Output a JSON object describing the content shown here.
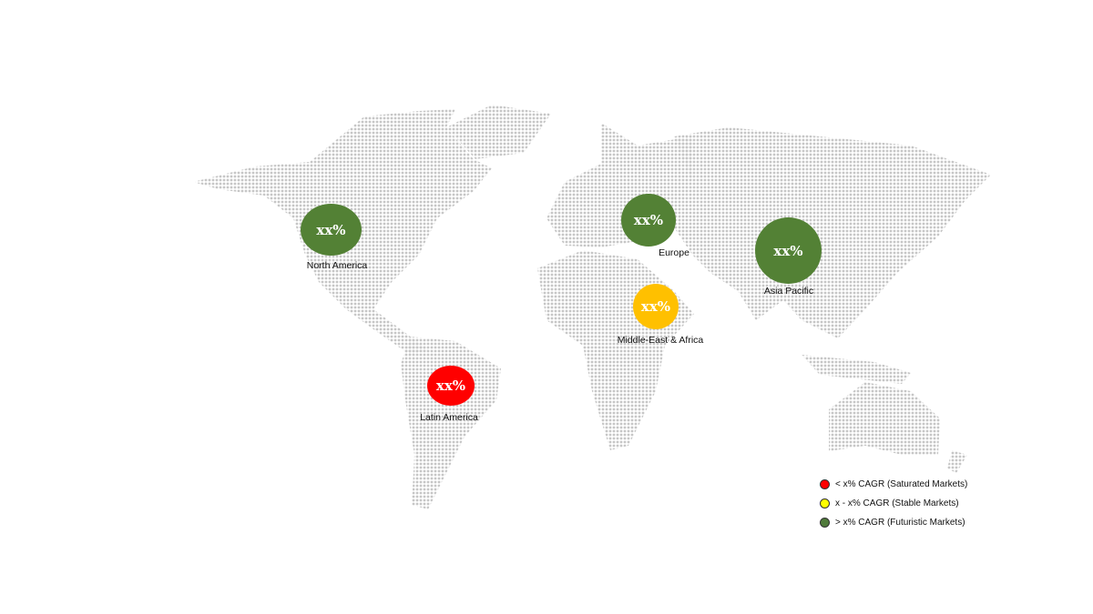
{
  "regions": [
    {
      "name": "North America",
      "value": "xx%",
      "color": "#538135"
    },
    {
      "name": "Europe",
      "value": "xx%",
      "color": "#538135"
    },
    {
      "name": "Asia Pacific",
      "value": "xx%",
      "color": "#538135"
    },
    {
      "name": "Middle-East & Africa",
      "value": "xx%",
      "color": "#ffc000"
    },
    {
      "name": "Latin America",
      "value": "xx%",
      "color": "#ff0000"
    }
  ],
  "legend": [
    {
      "label": "< x% CAGR (Saturated Markets)",
      "color": "#ff0000"
    },
    {
      "label": "x - x% CAGR (Stable Markets)",
      "color": "#ffff00"
    },
    {
      "label": "> x% CAGR (Futuristic Markets)",
      "color": "#4f7a3a"
    }
  ]
}
